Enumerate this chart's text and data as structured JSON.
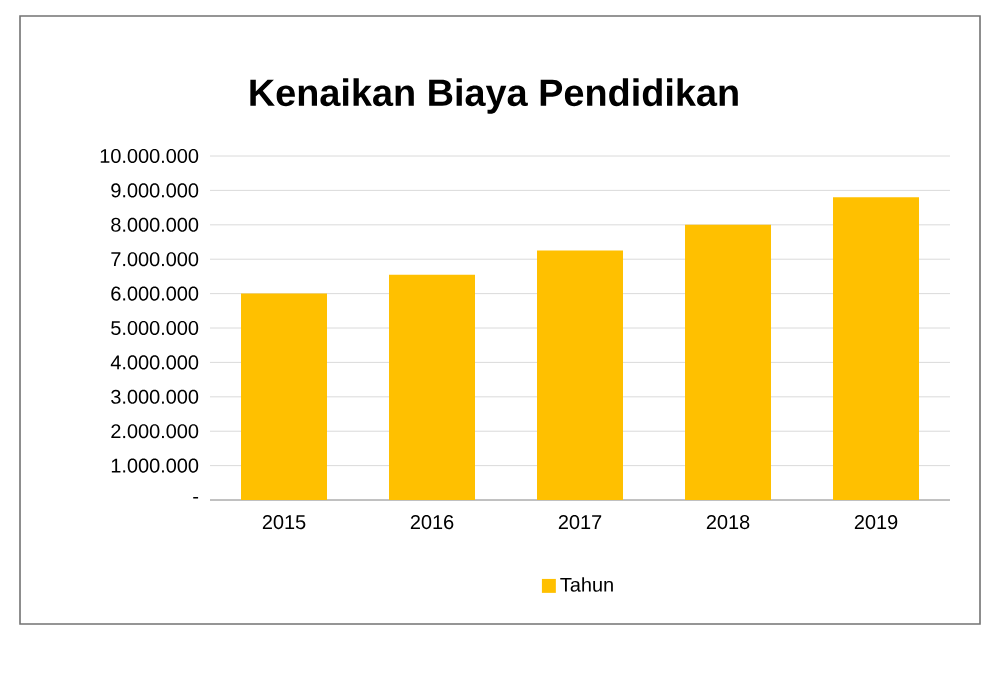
{
  "chart_data": {
    "type": "bar",
    "title": "Kenaikan Biaya Pendidikan",
    "categories": [
      "2015",
      "2016",
      "2017",
      "2018",
      "2019"
    ],
    "series": [
      {
        "name": "Tahun",
        "color": "#ffc000",
        "values": [
          6000000,
          6550000,
          7250000,
          8000000,
          8800000
        ]
      }
    ],
    "ylim": [
      0,
      10000000
    ],
    "yticks": [
      {
        "value": 0,
        "label": "-"
      },
      {
        "value": 1000000,
        "label": "1.000.000"
      },
      {
        "value": 2000000,
        "label": "2.000.000"
      },
      {
        "value": 3000000,
        "label": "3.000.000"
      },
      {
        "value": 4000000,
        "label": "4.000.000"
      },
      {
        "value": 5000000,
        "label": "5.000.000"
      },
      {
        "value": 6000000,
        "label": "6.000.000"
      },
      {
        "value": 7000000,
        "label": "7.000.000"
      },
      {
        "value": 8000000,
        "label": "8.000.000"
      },
      {
        "value": 9000000,
        "label": "9.000.000"
      },
      {
        "value": 10000000,
        "label": "10.000.000"
      }
    ],
    "grid": "y",
    "legend": "bottom"
  }
}
